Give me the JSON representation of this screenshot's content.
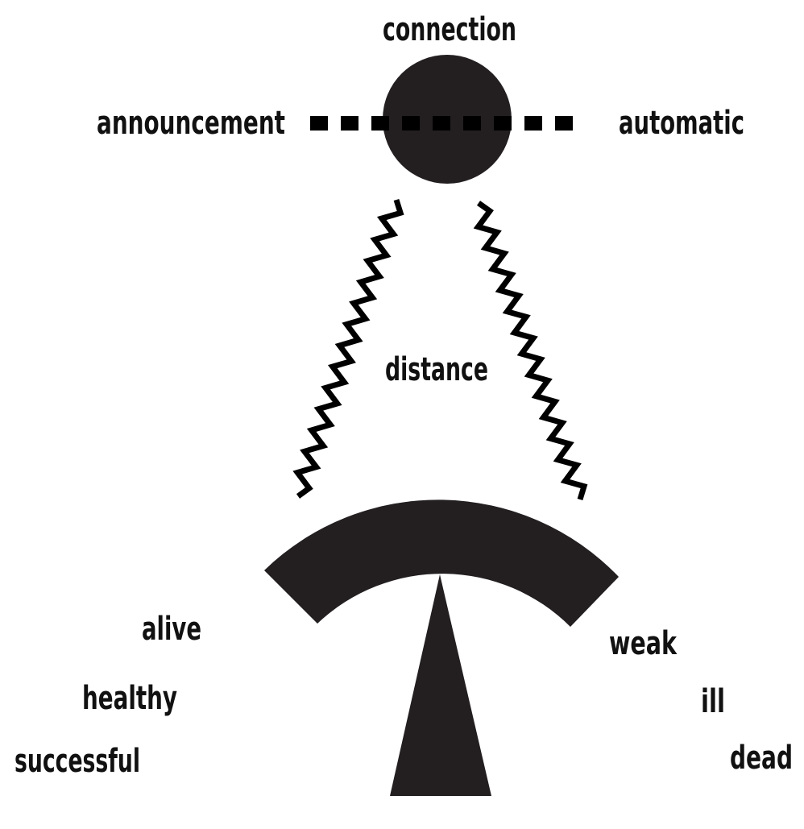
{
  "labels": {
    "connection": "connection",
    "announcement": "announcement",
    "automatic": "automatic",
    "distance": "distance",
    "alive": "alive",
    "healthy": "healthy",
    "successful": "successful",
    "weak": "weak",
    "ill": "ill",
    "dead": "dead"
  },
  "colors": {
    "ink": "#231f20",
    "background": "#ffffff"
  }
}
